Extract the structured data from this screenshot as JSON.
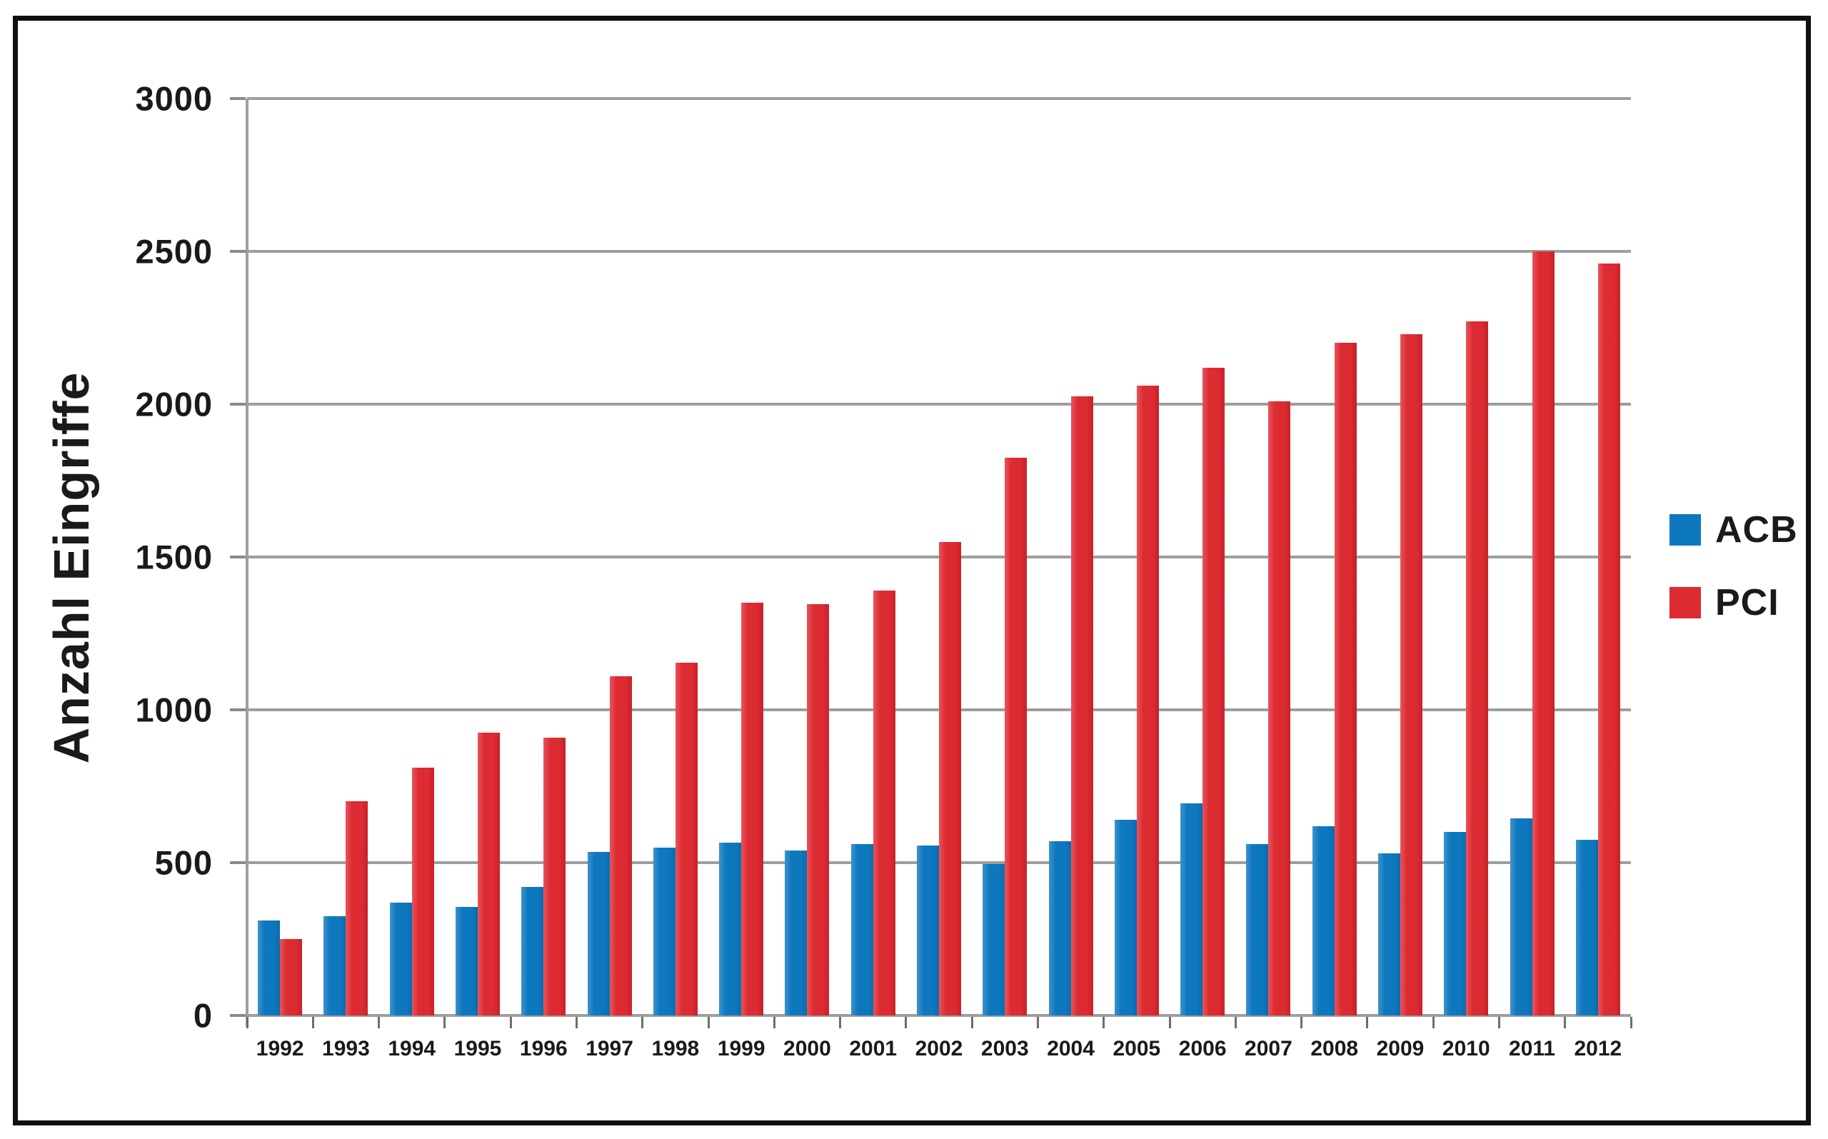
{
  "colors": {
    "acb_blue": "#0E78BE",
    "acb_blue_light": "#3F93CC",
    "acb_blue_dark": "#0A6CB0",
    "pci_red": "#DC2B31",
    "pci_red_light": "#E8555C",
    "pci_red_dark": "#C92128",
    "gridline": "#9E9E9E",
    "axis": "#9E9E9E",
    "tick": "#6E6E6E",
    "text": "#1A1A1A",
    "frame": "#101010",
    "background": "#FFFFFF"
  },
  "chart_data": {
    "type": "bar",
    "title": "",
    "xlabel": "",
    "ylabel": "Anzahl Eingriffe",
    "ylim": [
      0,
      3000
    ],
    "yticks": [
      0,
      500,
      1000,
      1500,
      2000,
      2500,
      3000
    ],
    "grid": true,
    "legend_position": "right",
    "categories": [
      "1992",
      "1993",
      "1994",
      "1995",
      "1996",
      "1997",
      "1998",
      "1999",
      "2000",
      "2001",
      "2002",
      "2003",
      "2004",
      "2005",
      "2006",
      "2007",
      "2008",
      "2009",
      "2010",
      "2011",
      "2012"
    ],
    "series": [
      {
        "name": "ACB",
        "color": "#0E78BE",
        "values": [
          310,
          325,
          370,
          355,
          420,
          535,
          550,
          565,
          540,
          560,
          555,
          495,
          570,
          640,
          695,
          560,
          620,
          530,
          600,
          645,
          575
        ]
      },
      {
        "name": "PCI",
        "color": "#DC2B31",
        "values": [
          250,
          700,
          810,
          925,
          910,
          1110,
          1155,
          1350,
          1345,
          1390,
          1550,
          1825,
          2025,
          2060,
          2120,
          2010,
          2200,
          2230,
          2270,
          2500,
          2460
        ]
      }
    ],
    "legend": [
      "ACB",
      "PCI"
    ]
  }
}
